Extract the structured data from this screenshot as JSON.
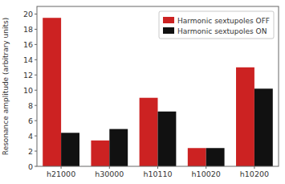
{
  "chart_data": {
    "type": "bar",
    "categories": [
      "h21000",
      "h30000",
      "h10110",
      "h10020",
      "h10200"
    ],
    "series": [
      {
        "name": "Harmonic sextupoles OFF",
        "color": "#cc2222",
        "values": [
          19.5,
          3.4,
          9.0,
          2.4,
          13.0
        ]
      },
      {
        "name": "Harmonic sextupoles ON",
        "color": "#111111",
        "values": [
          4.4,
          4.9,
          7.2,
          2.4,
          10.2
        ]
      }
    ],
    "ylabel": "Resonance amplitude (arbitrary units)",
    "ylim": [
      0,
      21
    ],
    "yticks": [
      0,
      2,
      4,
      6,
      8,
      10,
      12,
      14,
      16,
      18,
      20
    ],
    "legend": "upper right"
  }
}
